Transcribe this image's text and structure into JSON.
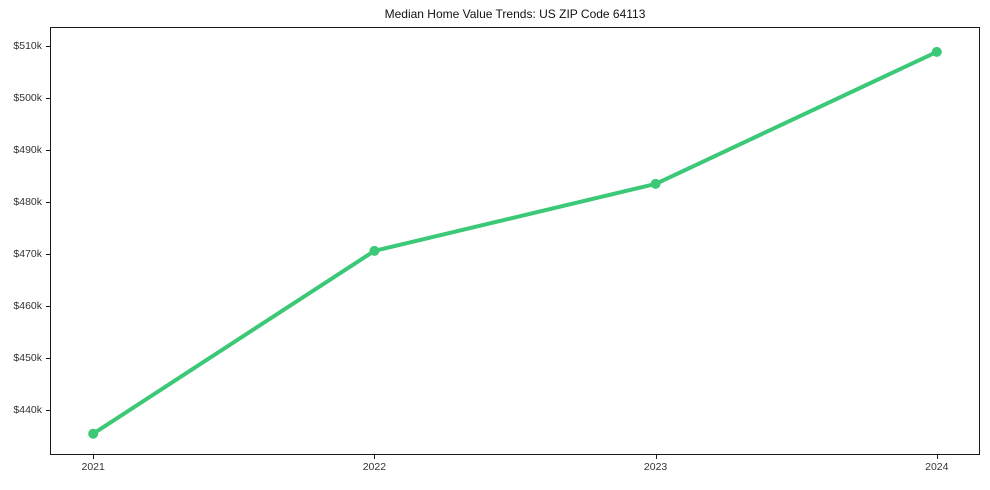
{
  "chart_data": {
    "type": "line",
    "title": "Median Home Value Trends: US ZIP Code 64113",
    "categories": [
      "2021",
      "2022",
      "2023",
      "2024"
    ],
    "series": [
      {
        "name": "Median Home Value",
        "values": [
          435400,
          470600,
          483500,
          508900
        ]
      }
    ],
    "xlabel": "",
    "ylabel": "",
    "y_ticks": [
      440000,
      450000,
      460000,
      470000,
      480000,
      490000,
      500000,
      510000
    ],
    "y_tick_labels": [
      "$440k",
      "$450k",
      "$460k",
      "$470k",
      "$480k",
      "$490k",
      "$500k",
      "$510k"
    ],
    "ylim": [
      431500,
      513500
    ],
    "x_margin_fraction": 0.05,
    "grid": false,
    "legend": "none",
    "line_color": "#3bc877",
    "marker": "circle",
    "line_width": 4,
    "marker_radius": 5
  }
}
